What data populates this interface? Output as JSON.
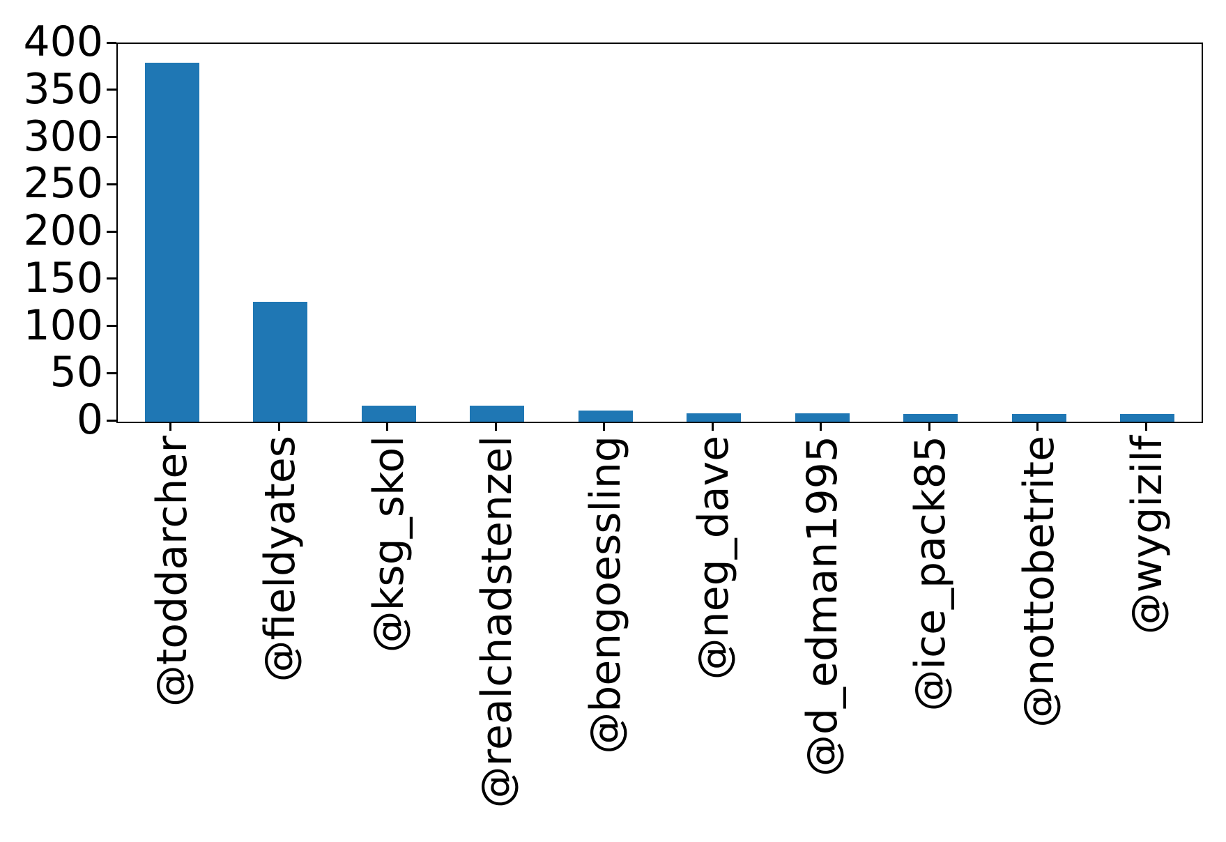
{
  "figure": {
    "title": "",
    "background_color": "#ffffff",
    "axis_color": "#000000"
  },
  "chart_data": {
    "type": "bar",
    "title": "",
    "xlabel": "",
    "ylabel": "",
    "categories": [
      "@toddarcher",
      "@fieldyates",
      "@ksg_skol",
      "@realchadstenzel",
      "@bengoessling",
      "@neg_dave",
      "@d_edman1995",
      "@ice_pack85",
      "@nottobetrite",
      "@wygizilf"
    ],
    "values": [
      380,
      127,
      17,
      17,
      12,
      9,
      9,
      8,
      8,
      8
    ],
    "ylim": [
      0,
      400
    ],
    "yticks": [
      0,
      50,
      100,
      150,
      200,
      250,
      300,
      350,
      400
    ],
    "bar_color": "#1f77b4",
    "bar_rel_width": 0.5,
    "grid": false,
    "legend": false,
    "x_tick_rotation": 90
  }
}
